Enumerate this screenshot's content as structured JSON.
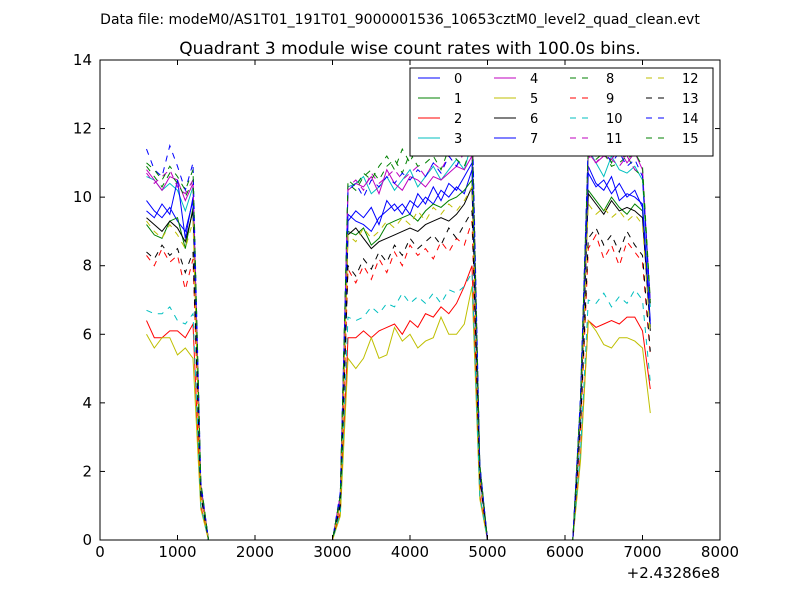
{
  "suptitle": "Data file: modeM0/AS1T01_191T01_9000001536_10653cztM0_level2_quad_clean.evt",
  "chart_data": {
    "type": "line",
    "title": "Quadrant 3 module wise count rates with 100.0s bins.",
    "xlabel": "",
    "ylabel": "",
    "x_offset_label": "+2.43286e8",
    "xlim": [
      0,
      8000
    ],
    "ylim": [
      0,
      14
    ],
    "x_ticks": [
      0,
      1000,
      2000,
      3000,
      4000,
      5000,
      6000,
      7000,
      8000
    ],
    "y_ticks": [
      0,
      2,
      4,
      6,
      8,
      10,
      12,
      14
    ],
    "legend_position": "top-right",
    "x": [
      600,
      700,
      800,
      900,
      1000,
      1100,
      1200,
      1300,
      1400,
      1500,
      1600,
      1700,
      1800,
      1900,
      2000,
      2100,
      2200,
      2300,
      2400,
      2500,
      2600,
      2700,
      2800,
      2900,
      3000,
      3100,
      3200,
      3300,
      3400,
      3500,
      3600,
      3700,
      3800,
      3900,
      4000,
      4100,
      4200,
      4300,
      4400,
      4500,
      4600,
      4700,
      4800,
      4900,
      5000,
      5100,
      5200,
      5300,
      5400,
      5500,
      5600,
      5700,
      5800,
      5900,
      6000,
      6100,
      6200,
      6300,
      6400,
      6500,
      6600,
      6700,
      6800,
      6900,
      7000,
      7100
    ],
    "series": [
      {
        "name": "0",
        "color": "#0000ff",
        "dash": "solid",
        "values": [
          9.9,
          9.6,
          9.4,
          9.7,
          9.3,
          9.0,
          9.9,
          1.5,
          0,
          0,
          0,
          0,
          0,
          0,
          0,
          0,
          0,
          0,
          0,
          0,
          0,
          0,
          0,
          0,
          0,
          1.2,
          9.5,
          9.3,
          9.2,
          9.0,
          9.4,
          9.6,
          9.8,
          9.5,
          9.9,
          9.7,
          10.0,
          9.8,
          10.2,
          10.0,
          10.3,
          10.1,
          10.8,
          2.0,
          0,
          0,
          0,
          0,
          0,
          0,
          0,
          0,
          0,
          0,
          0,
          0,
          3.8,
          10.9,
          10.4,
          10.2,
          10.6,
          9.9,
          10.1,
          10.0,
          9.8,
          6.4
        ]
      },
      {
        "name": "1",
        "color": "#008000",
        "dash": "solid",
        "values": [
          9.2,
          8.9,
          8.8,
          9.3,
          9.4,
          8.5,
          9.7,
          1.4,
          0,
          0,
          0,
          0,
          0,
          0,
          0,
          0,
          0,
          0,
          0,
          0,
          0,
          0,
          0,
          0,
          0,
          1.1,
          9.0,
          8.9,
          9.1,
          8.6,
          8.8,
          9.2,
          9.3,
          9.4,
          9.5,
          9.3,
          9.6,
          9.8,
          9.7,
          9.9,
          10.0,
          10.2,
          10.5,
          2.0,
          0,
          0,
          0,
          0,
          0,
          0,
          0,
          0,
          0,
          0,
          0,
          0,
          3.7,
          10.2,
          9.9,
          9.6,
          10.0,
          9.7,
          9.5,
          9.8,
          9.6,
          6.2
        ]
      },
      {
        "name": "2",
        "color": "#ff0000",
        "dash": "solid",
        "values": [
          6.4,
          5.9,
          5.9,
          6.1,
          6.1,
          5.9,
          6.3,
          1.0,
          0,
          0,
          0,
          0,
          0,
          0,
          0,
          0,
          0,
          0,
          0,
          0,
          0,
          0,
          0,
          0,
          0,
          0.8,
          5.9,
          5.9,
          6.1,
          5.9,
          6.1,
          6.2,
          6.3,
          6.0,
          6.4,
          6.2,
          6.6,
          6.5,
          6.8,
          6.6,
          6.9,
          7.4,
          8.0,
          1.3,
          0,
          0,
          0,
          0,
          0,
          0,
          0,
          0,
          0,
          0,
          0,
          0,
          2.5,
          6.4,
          6.2,
          6.3,
          6.4,
          6.3,
          6.5,
          6.5,
          6.1,
          4.4
        ]
      },
      {
        "name": "3",
        "color": "#00bfbf",
        "dash": "solid",
        "values": [
          10.6,
          10.5,
          10.2,
          10.4,
          10.2,
          9.6,
          10.3,
          1.6,
          0,
          0,
          0,
          0,
          0,
          0,
          0,
          0,
          0,
          0,
          0,
          0,
          0,
          0,
          0,
          0,
          0,
          1.3,
          10.3,
          10.4,
          10.6,
          10.1,
          10.3,
          10.6,
          10.2,
          10.5,
          10.8,
          10.3,
          10.6,
          10.9,
          10.5,
          10.8,
          11.1,
          10.8,
          11.6,
          2.2,
          0,
          0,
          0,
          0,
          0,
          0,
          0,
          0,
          0,
          0,
          0,
          0,
          4.1,
          11.4,
          11.0,
          10.6,
          11.2,
          10.8,
          10.7,
          10.9,
          10.5,
          6.8
        ]
      },
      {
        "name": "4",
        "color": "#bf00bf",
        "dash": "solid",
        "values": [
          10.8,
          10.5,
          10.2,
          10.6,
          10.5,
          9.9,
          10.4,
          1.6,
          0,
          0,
          0,
          0,
          0,
          0,
          0,
          0,
          0,
          0,
          0,
          0,
          0,
          0,
          0,
          0,
          0,
          1.3,
          10.2,
          10.4,
          10.3,
          10.6,
          10.1,
          10.8,
          10.4,
          10.2,
          10.6,
          10.5,
          10.3,
          10.6,
          10.5,
          10.7,
          10.9,
          10.8,
          11.2,
          2.1,
          0,
          0,
          0,
          0,
          0,
          0,
          0,
          0,
          0,
          0,
          0,
          0,
          4.0,
          11.3,
          11.0,
          11.2,
          11.1,
          11.4,
          11.0,
          11.3,
          10.8,
          6.9
        ]
      },
      {
        "name": "5",
        "color": "#bfbf00",
        "dash": "solid",
        "values": [
          6.0,
          5.6,
          5.9,
          5.9,
          5.4,
          5.6,
          5.3,
          0.9,
          0,
          0,
          0,
          0,
          0,
          0,
          0,
          0,
          0,
          0,
          0,
          0,
          0,
          0,
          0,
          0,
          0,
          0.7,
          5.3,
          5.0,
          5.3,
          5.9,
          5.3,
          5.4,
          6.2,
          5.8,
          6.0,
          5.6,
          5.8,
          5.9,
          6.5,
          6.0,
          6.0,
          6.3,
          7.4,
          1.2,
          0,
          0,
          0,
          0,
          0,
          0,
          0,
          0,
          0,
          0,
          0,
          0,
          2.3,
          6.4,
          6.1,
          5.7,
          5.6,
          5.9,
          5.9,
          5.8,
          5.6,
          3.7
        ]
      },
      {
        "name": "6",
        "color": "#000000",
        "dash": "solid",
        "values": [
          9.4,
          9.2,
          9.0,
          9.3,
          9.1,
          8.7,
          9.6,
          1.5,
          0,
          0,
          0,
          0,
          0,
          0,
          0,
          0,
          0,
          0,
          0,
          0,
          0,
          0,
          0,
          0,
          0,
          1.1,
          8.9,
          9.1,
          8.8,
          8.5,
          8.7,
          8.8,
          8.9,
          9.0,
          9.1,
          9.0,
          9.2,
          9.3,
          9.4,
          9.3,
          9.5,
          9.8,
          10.3,
          1.9,
          0,
          0,
          0,
          0,
          0,
          0,
          0,
          0,
          0,
          0,
          0,
          0,
          3.6,
          10.1,
          9.8,
          9.5,
          9.9,
          9.6,
          9.7,
          9.6,
          9.4,
          6.1
        ]
      },
      {
        "name": "7",
        "color": "#0000ff",
        "dash": "solid",
        "values": [
          9.6,
          9.4,
          9.8,
          9.5,
          10.5,
          8.8,
          10.0,
          1.5,
          0,
          0,
          0,
          0,
          0,
          0,
          0,
          0,
          0,
          0,
          0,
          0,
          0,
          0,
          0,
          0,
          0,
          1.2,
          9.3,
          9.6,
          9.4,
          9.7,
          9.2,
          9.9,
          9.6,
          9.8,
          9.5,
          10.1,
          9.8,
          10.3,
          9.9,
          10.4,
          10.2,
          10.6,
          11.0,
          2.0,
          0,
          0,
          0,
          0,
          0,
          0,
          0,
          0,
          0,
          0,
          0,
          0,
          3.8,
          10.7,
          10.3,
          10.5,
          10.1,
          10.4,
          10.0,
          10.2,
          9.7,
          6.3
        ]
      },
      {
        "name": "8",
        "color": "#008000",
        "dash": "dashed",
        "values": [
          10.9,
          10.6,
          10.3,
          10.7,
          10.4,
          10.0,
          10.5,
          1.6,
          0,
          0,
          0,
          0,
          0,
          0,
          0,
          0,
          0,
          0,
          0,
          0,
          0,
          0,
          0,
          0,
          0,
          1.3,
          10.4,
          10.2,
          10.6,
          10.8,
          10.5,
          10.9,
          11.1,
          10.7,
          11.3,
          10.9,
          11.0,
          11.2,
          10.8,
          11.4,
          11.1,
          10.9,
          11.5,
          2.2,
          0,
          0,
          0,
          0,
          0,
          0,
          0,
          0,
          0,
          0,
          0,
          0,
          4.1,
          11.5,
          11.1,
          11.3,
          10.9,
          11.0,
          11.2,
          10.8,
          10.6,
          6.9
        ]
      },
      {
        "name": "9",
        "color": "#ff0000",
        "dash": "dashed",
        "values": [
          8.3,
          8.0,
          8.5,
          8.1,
          8.3,
          7.3,
          8.2,
          1.3,
          0,
          0,
          0,
          0,
          0,
          0,
          0,
          0,
          0,
          0,
          0,
          0,
          0,
          0,
          0,
          0,
          0,
          1.0,
          7.9,
          7.5,
          8.0,
          7.6,
          8.2,
          7.8,
          8.4,
          8.0,
          8.6,
          8.3,
          8.5,
          8.2,
          8.7,
          8.4,
          8.8,
          8.6,
          9.3,
          1.7,
          0,
          0,
          0,
          0,
          0,
          0,
          0,
          0,
          0,
          0,
          0,
          0,
          3.2,
          8.5,
          8.9,
          8.2,
          8.6,
          8.0,
          8.7,
          8.4,
          8.1,
          5.4
        ]
      },
      {
        "name": "10",
        "color": "#00bfbf",
        "dash": "dashed",
        "values": [
          6.7,
          6.6,
          6.6,
          6.8,
          6.4,
          6.3,
          6.6,
          1.0,
          0,
          0,
          0,
          0,
          0,
          0,
          0,
          0,
          0,
          0,
          0,
          0,
          0,
          0,
          0,
          0,
          0,
          0.8,
          6.5,
          6.4,
          6.5,
          6.8,
          6.6,
          6.9,
          6.8,
          7.2,
          6.9,
          7.1,
          6.9,
          7.2,
          6.9,
          7.3,
          7.2,
          7.4,
          7.8,
          1.3,
          0,
          0,
          0,
          0,
          0,
          0,
          0,
          0,
          0,
          0,
          0,
          0,
          2.6,
          7.0,
          6.9,
          7.2,
          6.8,
          7.1,
          6.9,
          7.3,
          7.0,
          4.6
        ]
      },
      {
        "name": "11",
        "color": "#bf00bf",
        "dash": "dashed",
        "values": [
          10.7,
          10.4,
          10.6,
          10.8,
          10.3,
          10.1,
          10.5,
          1.6,
          0,
          0,
          0,
          0,
          0,
          0,
          0,
          0,
          0,
          0,
          0,
          0,
          0,
          0,
          0,
          0,
          0,
          1.3,
          10.3,
          10.5,
          10.2,
          10.7,
          10.4,
          10.6,
          10.8,
          10.5,
          10.7,
          10.9,
          10.6,
          11.0,
          10.8,
          11.2,
          10.9,
          11.3,
          12.4,
          2.2,
          0,
          0,
          0,
          0,
          0,
          0,
          0,
          0,
          0,
          0,
          0,
          0,
          4.0,
          11.2,
          11.0,
          11.3,
          11.1,
          10.9,
          11.2,
          10.8,
          10.7,
          6.9
        ]
      },
      {
        "name": "12",
        "color": "#bfbf00",
        "dash": "dashed",
        "values": [
          9.3,
          9.0,
          8.8,
          9.2,
          8.9,
          8.5,
          9.3,
          1.4,
          0,
          0,
          0,
          0,
          0,
          0,
          0,
          0,
          0,
          0,
          0,
          0,
          0,
          0,
          0,
          0,
          0,
          1.1,
          8.9,
          8.7,
          9.1,
          8.8,
          9.0,
          9.3,
          9.1,
          9.4,
          9.2,
          9.6,
          9.3,
          9.7,
          9.5,
          9.8,
          9.6,
          9.9,
          10.3,
          1.9,
          0,
          0,
          0,
          0,
          0,
          0,
          0,
          0,
          0,
          0,
          0,
          0,
          3.6,
          9.8,
          9.5,
          9.7,
          9.4,
          9.6,
          9.3,
          9.5,
          9.2,
          6.0
        ]
      },
      {
        "name": "13",
        "color": "#000000",
        "dash": "dashed",
        "values": [
          8.4,
          8.2,
          8.6,
          8.3,
          8.5,
          7.8,
          8.4,
          1.3,
          0,
          0,
          0,
          0,
          0,
          0,
          0,
          0,
          0,
          0,
          0,
          0,
          0,
          0,
          0,
          0,
          0,
          1.0,
          8.0,
          7.7,
          8.2,
          7.9,
          8.4,
          8.1,
          8.6,
          8.3,
          8.8,
          8.5,
          8.7,
          8.9,
          8.6,
          9.1,
          8.8,
          9.2,
          9.6,
          1.8,
          0,
          0,
          0,
          0,
          0,
          0,
          0,
          0,
          0,
          0,
          0,
          0,
          3.3,
          8.8,
          9.1,
          8.6,
          8.9,
          8.4,
          9.0,
          8.6,
          8.3,
          5.5
        ]
      },
      {
        "name": "14",
        "color": "#0000ff",
        "dash": "dashed",
        "values": [
          11.4,
          10.8,
          10.6,
          11.5,
          10.9,
          10.2,
          11.0,
          1.7,
          0,
          0,
          0,
          0,
          0,
          0,
          0,
          0,
          0,
          0,
          0,
          0,
          0,
          0,
          0,
          0,
          0,
          1.4,
          10.2,
          10.4,
          10.0,
          10.5,
          10.3,
          10.6,
          10.4,
          10.7,
          10.5,
          10.8,
          10.6,
          11.0,
          10.7,
          11.2,
          10.9,
          11.4,
          12.7,
          2.2,
          0,
          0,
          0,
          0,
          0,
          0,
          0,
          0,
          0,
          0,
          0,
          0,
          4.2,
          11.6,
          11.2,
          11.4,
          11.0,
          11.3,
          10.9,
          11.1,
          10.6,
          6.9
        ]
      },
      {
        "name": "15",
        "color": "#008000",
        "dash": "dashed",
        "values": [
          11.0,
          10.8,
          10.5,
          10.9,
          10.6,
          10.2,
          10.8,
          1.7,
          0,
          0,
          0,
          0,
          0,
          0,
          0,
          0,
          0,
          0,
          0,
          0,
          0,
          0,
          0,
          0,
          0,
          1.3,
          10.5,
          10.3,
          10.7,
          10.5,
          10.9,
          11.2,
          10.8,
          11.4,
          11.0,
          11.6,
          11.3,
          11.7,
          11.4,
          11.8,
          11.5,
          11.9,
          12.1,
          2.2,
          0,
          0,
          0,
          0,
          0,
          0,
          0,
          0,
          0,
          0,
          0,
          0,
          4.1,
          11.5,
          11.2,
          11.6,
          11.0,
          11.4,
          11.1,
          11.3,
          10.9,
          7.0
        ]
      }
    ]
  }
}
